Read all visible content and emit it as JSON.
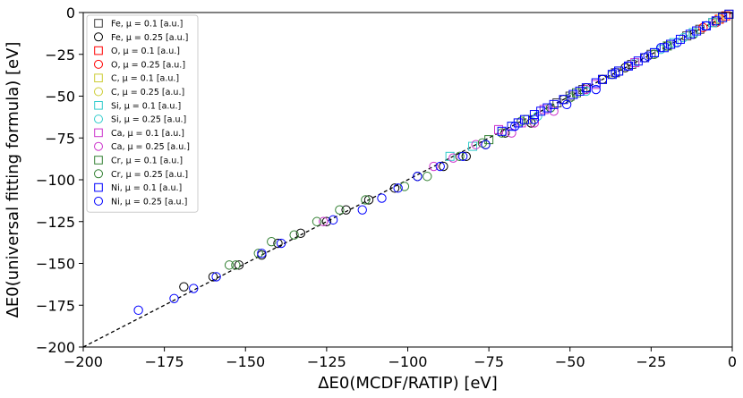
{
  "chart_data": {
    "type": "scatter",
    "title": "",
    "xlabel": "ΔE0(MCDF/RATIP) [eV]",
    "ylabel": "ΔE0(universal fitting formula) [eV]",
    "xlim": [
      -200,
      0
    ],
    "ylim": [
      -200,
      0
    ],
    "xticks": [
      -200,
      -175,
      -150,
      -125,
      -100,
      -75,
      -50,
      -25,
      0
    ],
    "yticks": [
      -200,
      -175,
      -150,
      -125,
      -100,
      -75,
      -50,
      -25,
      0
    ],
    "grid": false,
    "legend_position": "top-left",
    "reference_line": {
      "name": "y = x",
      "style": "dashed",
      "color": "#000000",
      "from": [
        -200,
        -200
      ],
      "to": [
        0,
        0
      ]
    },
    "series": [
      {
        "name": "Fe, μ = 0.1 [a.u.]",
        "marker": "square",
        "color": "#404040",
        "points": [
          [
            -1,
            -1
          ],
          [
            -3,
            -3
          ],
          [
            -6,
            -6
          ],
          [
            -10,
            -10
          ],
          [
            -14,
            -14
          ],
          [
            -19,
            -19
          ],
          [
            -25,
            -25
          ],
          [
            -31,
            -31
          ],
          [
            -36,
            -36
          ],
          [
            -40,
            -40
          ],
          [
            -46,
            -46
          ],
          [
            -50,
            -50
          ],
          [
            -54,
            -54
          ]
        ]
      },
      {
        "name": "Fe, μ = 0.25 [a.u.]",
        "marker": "circle",
        "color": "#000000",
        "points": [
          [
            -5,
            -5
          ],
          [
            -12,
            -13
          ],
          [
            -20,
            -20
          ],
          [
            -27,
            -27
          ],
          [
            -33,
            -33
          ],
          [
            -40,
            -40
          ],
          [
            -45,
            -45
          ],
          [
            -52,
            -52
          ],
          [
            -62,
            -66
          ],
          [
            -70,
            -72
          ],
          [
            -76,
            -79
          ],
          [
            -82,
            -86
          ],
          [
            -89,
            -92
          ],
          [
            -97,
            -98
          ],
          [
            -104,
            -105
          ],
          [
            -112,
            -112
          ],
          [
            -119,
            -118
          ],
          [
            -125,
            -125
          ],
          [
            -133,
            -132
          ],
          [
            -140,
            -138
          ],
          [
            -145,
            -145
          ],
          [
            -152,
            -151
          ],
          [
            -160,
            -158
          ],
          [
            -169,
            -164
          ]
        ]
      },
      {
        "name": "O, μ = 0.1 [a.u.]",
        "marker": "square",
        "color": "#ff0000",
        "points": [
          [
            -2,
            -2
          ],
          [
            -4,
            -4
          ]
        ]
      },
      {
        "name": "O, μ = 0.25 [a.u.]",
        "marker": "circle",
        "color": "#ff0000",
        "points": [
          [
            -5,
            -6
          ],
          [
            -9,
            -9
          ]
        ]
      },
      {
        "name": "C, μ = 0.1 [a.u.]",
        "marker": "square",
        "color": "#cccc33",
        "points": [
          [
            -3,
            -3
          ]
        ]
      },
      {
        "name": "C, μ = 0.25 [a.u.]",
        "marker": "circle",
        "color": "#cccc33",
        "points": [
          [
            -4,
            -4
          ]
        ]
      },
      {
        "name": "Si, μ = 0.1 [a.u.]",
        "marker": "square",
        "color": "#33cccc",
        "points": [
          [
            -6,
            -6
          ],
          [
            -12,
            -12
          ],
          [
            -18,
            -18
          ],
          [
            -24,
            -24
          ],
          [
            -58,
            -58
          ],
          [
            -68,
            -68
          ],
          [
            -80,
            -80
          ],
          [
            -87,
            -86
          ]
        ]
      },
      {
        "name": "Si, μ = 0.25 [a.u.]",
        "marker": "circle",
        "color": "#33cccc",
        "points": [
          [
            -8,
            -8
          ],
          [
            -15,
            -15
          ],
          [
            -22,
            -22
          ],
          [
            -30,
            -30
          ],
          [
            -45,
            -47
          ],
          [
            -60,
            -62
          ]
        ]
      },
      {
        "name": "Ca, μ = 0.1 [a.u.]",
        "marker": "square",
        "color": "#cc33cc",
        "points": [
          [
            -30,
            -30
          ],
          [
            -42,
            -43
          ],
          [
            -58,
            -58
          ],
          [
            -65,
            -66
          ],
          [
            -72,
            -70
          ]
        ]
      },
      {
        "name": "Ca, μ = 0.25 [a.u.]",
        "marker": "circle",
        "color": "#cc33cc",
        "points": [
          [
            -45,
            -46
          ],
          [
            -55,
            -59
          ],
          [
            -61,
            -66
          ],
          [
            -68,
            -72
          ],
          [
            -79,
            -79
          ],
          [
            -86,
            -87
          ],
          [
            -92,
            -92
          ],
          [
            -126,
            -125
          ]
        ]
      },
      {
        "name": "Cr, μ = 0.1 [a.u.]",
        "marker": "square",
        "color": "#338033",
        "points": [
          [
            -20,
            -20
          ],
          [
            -35,
            -35
          ],
          [
            -48,
            -48
          ],
          [
            -63,
            -64
          ],
          [
            -75,
            -76
          ]
        ]
      },
      {
        "name": "Cr, μ = 0.25 [a.u.]",
        "marker": "circle",
        "color": "#338033",
        "points": [
          [
            -24,
            -25
          ],
          [
            -37,
            -37
          ],
          [
            -50,
            -51
          ],
          [
            -56,
            -57
          ],
          [
            -65,
            -65
          ],
          [
            -71,
            -72
          ],
          [
            -77,
            -78
          ],
          [
            -84,
            -86
          ],
          [
            -94,
            -98
          ],
          [
            -101,
            -104
          ],
          [
            -113,
            -112
          ],
          [
            -121,
            -118
          ],
          [
            -128,
            -125
          ],
          [
            -135,
            -133
          ],
          [
            -142,
            -137
          ],
          [
            -146,
            -144
          ],
          [
            -153,
            -151
          ],
          [
            -155,
            -151
          ]
        ]
      },
      {
        "name": "Ni, μ = 0.1 [a.u.]",
        "marker": "square",
        "color": "#0000ff",
        "points": [
          [
            -1,
            -1
          ],
          [
            -3,
            -3
          ],
          [
            -5,
            -5
          ],
          [
            -8,
            -8
          ],
          [
            -11,
            -11
          ],
          [
            -13,
            -13
          ],
          [
            -16,
            -16
          ],
          [
            -19,
            -19
          ],
          [
            -21,
            -21
          ],
          [
            -24,
            -24
          ],
          [
            -27,
            -27
          ],
          [
            -29,
            -29
          ],
          [
            -32,
            -32
          ],
          [
            -35,
            -35
          ],
          [
            -37,
            -37
          ],
          [
            -40,
            -40
          ],
          [
            -42,
            -42
          ],
          [
            -45,
            -45
          ],
          [
            -47,
            -47
          ],
          [
            -49,
            -49
          ],
          [
            -52,
            -52
          ],
          [
            -55,
            -55
          ],
          [
            -57,
            -57
          ],
          [
            -59,
            -59
          ],
          [
            -61,
            -61
          ],
          [
            -64,
            -64
          ],
          [
            -66,
            -66
          ],
          [
            -68,
            -68
          ],
          [
            -71,
            -71
          ]
        ]
      },
      {
        "name": "Ni, μ = 0.25 [a.u.]",
        "marker": "circle",
        "color": "#0000ff",
        "points": [
          [
            -8,
            -8
          ],
          [
            -17,
            -18
          ],
          [
            -22,
            -21
          ],
          [
            -26,
            -26
          ],
          [
            -32,
            -32
          ],
          [
            -36,
            -36
          ],
          [
            -42,
            -46
          ],
          [
            -51,
            -55
          ],
          [
            -61,
            -64
          ],
          [
            -67,
            -68
          ],
          [
            -76,
            -79
          ],
          [
            -83,
            -86
          ],
          [
            -90,
            -92
          ],
          [
            -97,
            -98
          ],
          [
            -103,
            -105
          ],
          [
            -108,
            -111
          ],
          [
            -114,
            -118
          ],
          [
            -123,
            -124
          ],
          [
            -139,
            -138
          ],
          [
            -145,
            -144
          ],
          [
            -159,
            -158
          ],
          [
            -166,
            -165
          ],
          [
            -172,
            -171
          ],
          [
            -183,
            -178
          ]
        ]
      }
    ]
  }
}
